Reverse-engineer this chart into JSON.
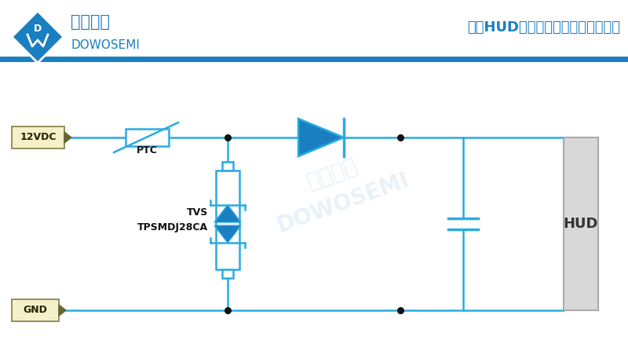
{
  "title": "汽车HUD平视显示器抛负载防护方案",
  "company_cn": "东沃电子",
  "company_en": "DOWOSEMI",
  "blue": "#29ABE2",
  "dark_blue": "#1a7fc1",
  "bg_color": "#FFFFFF",
  "line_color": "#29ABE2",
  "label_12vdc": "12VDC",
  "label_gnd": "GND",
  "label_ptc": "PTC",
  "label_tvs_line1": "TVS",
  "label_tvs_line2": "TPSMDJ28CA",
  "label_hud": "HUD",
  "watermark_en": "DOWOSEMI",
  "watermark_cn": "东沃电子"
}
